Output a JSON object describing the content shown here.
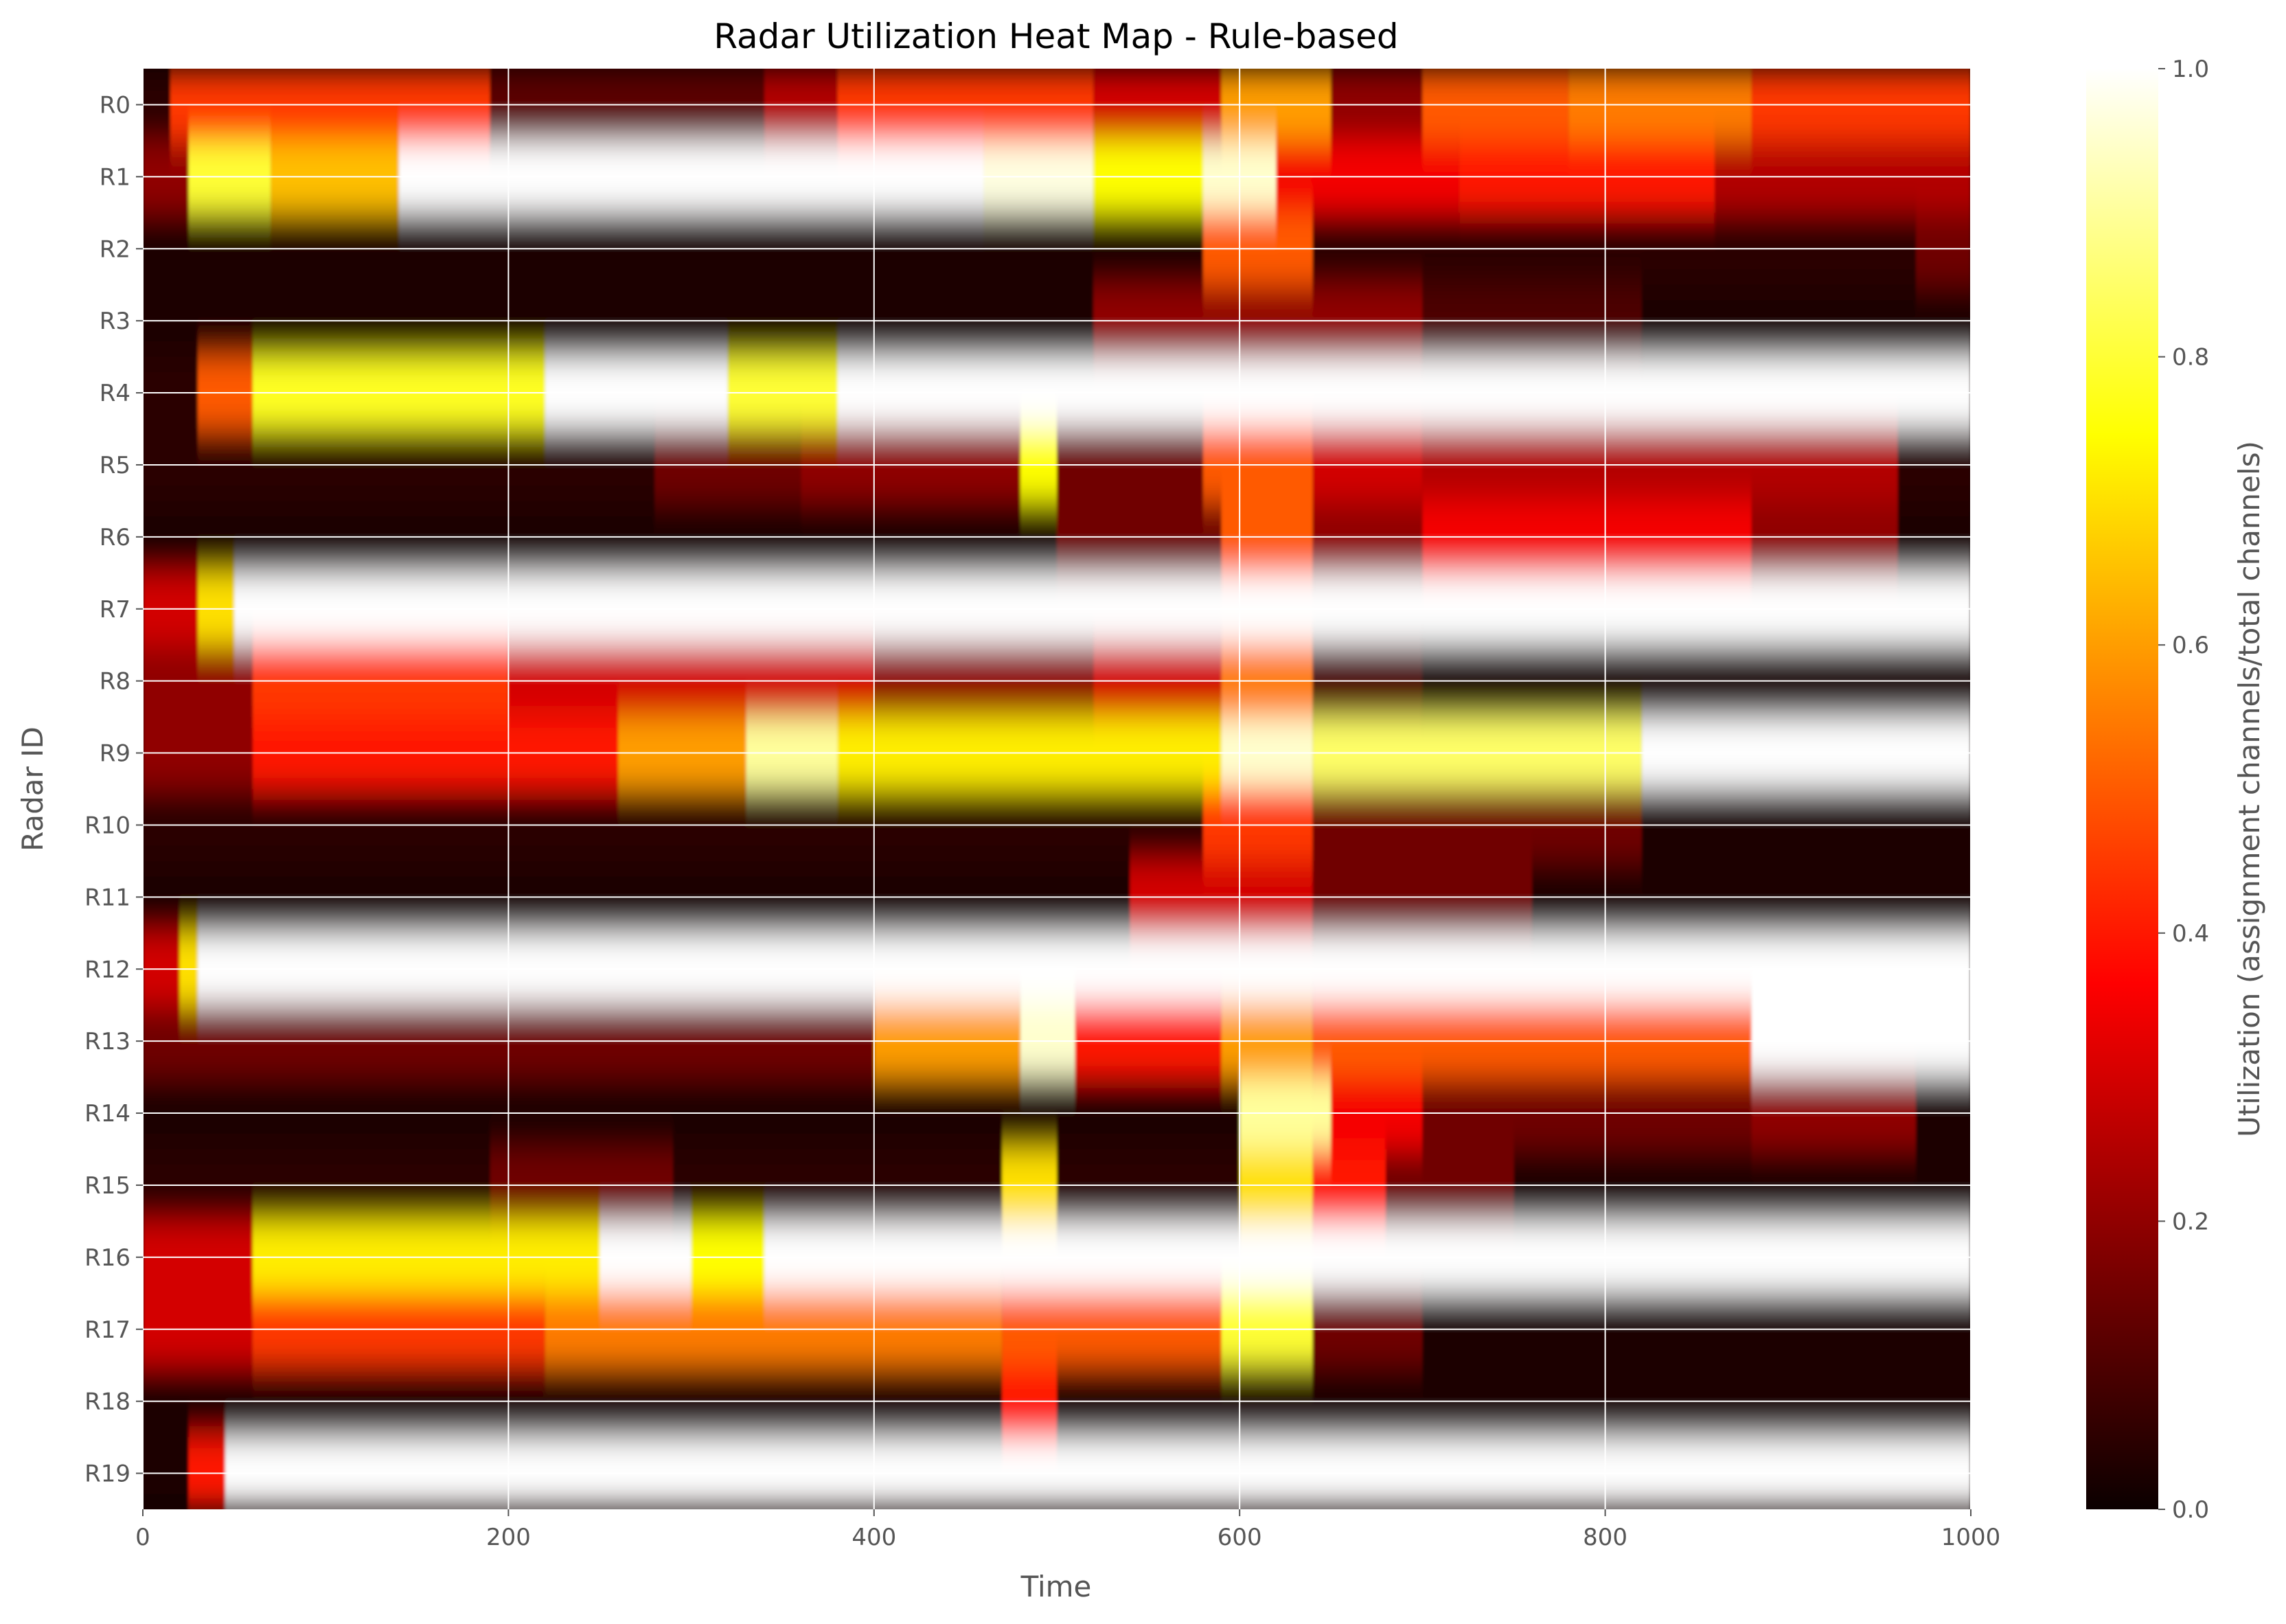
{
  "chart_data": {
    "type": "heatmap",
    "title": "Radar Utilization Heat Map - Rule-based",
    "xlabel": "Time",
    "ylabel": "Radar ID",
    "xlim": [
      0,
      1000
    ],
    "x_ticks": [
      "0",
      "200",
      "400",
      "600",
      "800",
      "1000"
    ],
    "rows": [
      "R0",
      "R1",
      "R2",
      "R3",
      "R4",
      "R5",
      "R6",
      "R7",
      "R8",
      "R9",
      "R10",
      "R11",
      "R12",
      "R13",
      "R14",
      "R15",
      "R16",
      "R17",
      "R18",
      "R19"
    ],
    "colorbar": {
      "label": "Utilization (assignment channels/total channels)",
      "ticks": [
        "0.0",
        "0.2",
        "0.4",
        "0.6",
        "0.8",
        "1.0"
      ],
      "range": [
        0,
        1
      ],
      "colormap": "hot"
    },
    "grid": true,
    "utilization_segments": [
      [
        [
          0,
          15,
          0.05
        ],
        [
          15,
          190,
          0.45
        ],
        [
          190,
          340,
          0.12
        ],
        [
          340,
          380,
          0.25
        ],
        [
          380,
          520,
          0.45
        ],
        [
          520,
          590,
          0.3
        ],
        [
          590,
          650,
          0.6
        ],
        [
          650,
          700,
          0.2
        ],
        [
          700,
          780,
          0.5
        ],
        [
          780,
          880,
          0.55
        ],
        [
          880,
          1000,
          0.45
        ]
      ],
      [
        [
          0,
          25,
          0.2
        ],
        [
          25,
          70,
          0.8
        ],
        [
          70,
          140,
          0.65
        ],
        [
          140,
          460,
          1.0
        ],
        [
          460,
          520,
          0.97
        ],
        [
          520,
          580,
          0.75
        ],
        [
          580,
          620,
          0.95
        ],
        [
          620,
          720,
          0.35
        ],
        [
          720,
          860,
          0.4
        ],
        [
          860,
          1000,
          0.25
        ]
      ],
      [
        [
          0,
          580,
          0.03
        ],
        [
          580,
          640,
          0.5
        ],
        [
          640,
          970,
          0.05
        ],
        [
          970,
          1000,
          0.15
        ]
      ],
      [
        [
          0,
          520,
          0.03
        ],
        [
          520,
          700,
          0.2
        ],
        [
          700,
          820,
          0.1
        ],
        [
          820,
          1000,
          0.03
        ]
      ],
      [
        [
          0,
          30,
          0.05
        ],
        [
          30,
          60,
          0.5
        ],
        [
          60,
          220,
          0.78
        ],
        [
          220,
          320,
          1.0
        ],
        [
          320,
          380,
          0.8
        ],
        [
          380,
          1000,
          1.0
        ]
      ],
      [
        [
          0,
          280,
          0.05
        ],
        [
          280,
          360,
          0.15
        ],
        [
          360,
          480,
          0.2
        ],
        [
          480,
          500,
          0.75
        ],
        [
          500,
          580,
          0.15
        ],
        [
          580,
          640,
          0.5
        ],
        [
          640,
          700,
          0.3
        ],
        [
          700,
          960,
          0.25
        ],
        [
          960,
          1000,
          0.05
        ]
      ],
      [
        [
          0,
          500,
          0.03
        ],
        [
          500,
          590,
          0.15
        ],
        [
          590,
          640,
          0.5
        ],
        [
          640,
          700,
          0.2
        ],
        [
          700,
          880,
          0.35
        ],
        [
          880,
          960,
          0.2
        ],
        [
          960,
          1000,
          0.03
        ]
      ],
      [
        [
          0,
          30,
          0.3
        ],
        [
          30,
          50,
          0.7
        ],
        [
          50,
          1000,
          1.0
        ]
      ],
      [
        [
          0,
          60,
          0.2
        ],
        [
          60,
          200,
          0.45
        ],
        [
          200,
          400,
          0.3
        ],
        [
          400,
          520,
          0.2
        ],
        [
          520,
          590,
          0.3
        ],
        [
          590,
          640,
          0.55
        ],
        [
          640,
          700,
          0.1
        ],
        [
          700,
          1000,
          0.03
        ]
      ],
      [
        [
          0,
          60,
          0.2
        ],
        [
          60,
          260,
          0.4
        ],
        [
          260,
          330,
          0.6
        ],
        [
          330,
          380,
          0.9
        ],
        [
          380,
          590,
          0.72
        ],
        [
          590,
          640,
          0.95
        ],
        [
          640,
          820,
          0.85
        ],
        [
          820,
          1000,
          1.0
        ]
      ],
      [
        [
          0,
          580,
          0.05
        ],
        [
          580,
          640,
          0.45
        ],
        [
          640,
          820,
          0.15
        ],
        [
          820,
          1000,
          0.03
        ]
      ],
      [
        [
          0,
          540,
          0.03
        ],
        [
          540,
          640,
          0.3
        ],
        [
          640,
          760,
          0.15
        ],
        [
          760,
          1000,
          0.03
        ]
      ],
      [
        [
          0,
          20,
          0.3
        ],
        [
          20,
          30,
          0.7
        ],
        [
          30,
          1000,
          1.0
        ]
      ],
      [
        [
          0,
          400,
          0.15
        ],
        [
          400,
          480,
          0.6
        ],
        [
          480,
          510,
          0.95
        ],
        [
          510,
          590,
          0.4
        ],
        [
          590,
          640,
          0.6
        ],
        [
          640,
          880,
          0.5
        ],
        [
          880,
          1000,
          1.0
        ]
      ],
      [
        [
          0,
          600,
          0.03
        ],
        [
          600,
          650,
          0.9
        ],
        [
          650,
          700,
          0.35
        ],
        [
          700,
          880,
          0.15
        ],
        [
          880,
          970,
          0.2
        ],
        [
          970,
          1000,
          0.03
        ]
      ],
      [
        [
          0,
          190,
          0.05
        ],
        [
          190,
          290,
          0.15
        ],
        [
          290,
          470,
          0.05
        ],
        [
          470,
          500,
          0.7
        ],
        [
          500,
          600,
          0.05
        ],
        [
          600,
          640,
          0.7
        ],
        [
          640,
          680,
          0.4
        ],
        [
          680,
          750,
          0.15
        ],
        [
          750,
          1000,
          0.03
        ]
      ],
      [
        [
          0,
          60,
          0.3
        ],
        [
          60,
          250,
          0.72
        ],
        [
          250,
          300,
          1.0
        ],
        [
          300,
          340,
          0.75
        ],
        [
          340,
          1000,
          1.0
        ]
      ],
      [
        [
          0,
          60,
          0.3
        ],
        [
          60,
          220,
          0.45
        ],
        [
          220,
          470,
          0.55
        ],
        [
          470,
          590,
          0.5
        ],
        [
          590,
          640,
          0.8
        ],
        [
          640,
          700,
          0.15
        ],
        [
          700,
          1000,
          0.03
        ]
      ],
      [
        [
          0,
          470,
          0.03
        ],
        [
          470,
          500,
          0.4
        ],
        [
          500,
          1000,
          0.03
        ]
      ],
      [
        [
          0,
          25,
          0.03
        ],
        [
          25,
          45,
          0.4
        ],
        [
          45,
          1000,
          1.0
        ]
      ]
    ]
  }
}
